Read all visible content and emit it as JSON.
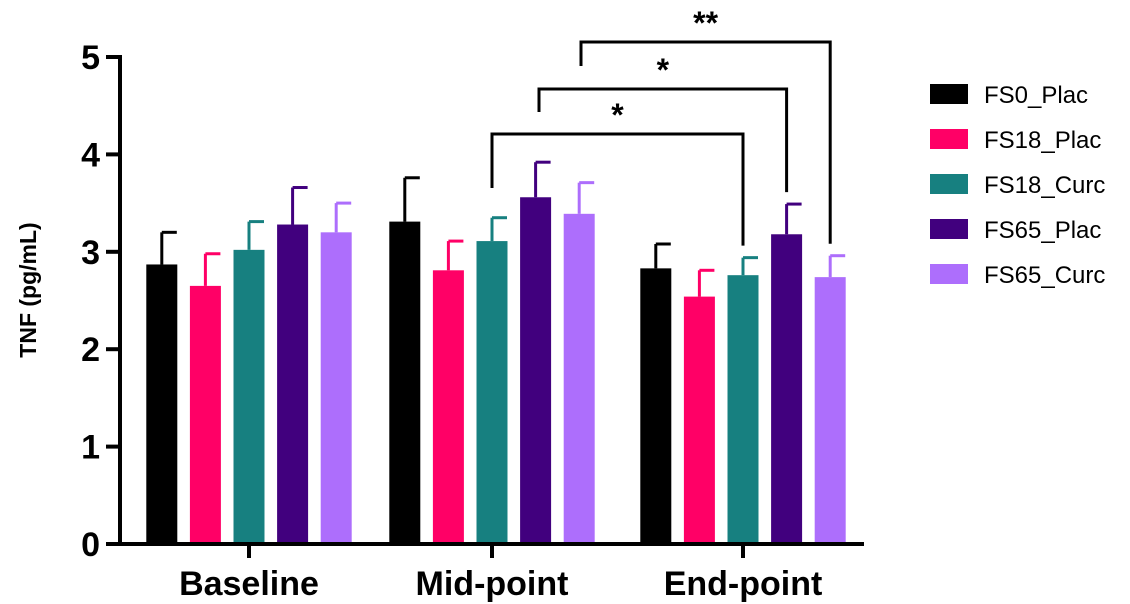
{
  "chart_data": {
    "type": "bar",
    "ylabel": "TNF (pg/mL)",
    "xlabel": "",
    "ylim": [
      0,
      5
    ],
    "yticks": [
      0,
      1,
      2,
      3,
      4,
      5
    ],
    "categories": [
      "Baseline",
      "Mid-point",
      "End-point"
    ],
    "legend_position": "right",
    "series": [
      {
        "name": "FS0_Plac",
        "color": "#000000",
        "values": [
          2.87,
          3.31,
          2.83
        ],
        "errors": [
          0.33,
          0.45,
          0.25
        ]
      },
      {
        "name": "FS18_Plac",
        "color": "#ff0066",
        "values": [
          2.65,
          2.81,
          2.54
        ],
        "errors": [
          0.33,
          0.3,
          0.27
        ]
      },
      {
        "name": "FS18_Curc",
        "color": "#178080",
        "values": [
          3.02,
          3.11,
          2.76
        ],
        "errors": [
          0.29,
          0.24,
          0.18
        ]
      },
      {
        "name": "FS65_Plac",
        "color": "#41007e",
        "values": [
          3.28,
          3.56,
          3.18
        ],
        "errors": [
          0.38,
          0.36,
          0.31
        ]
      },
      {
        "name": "FS65_Curc",
        "color": "#ad6efc",
        "values": [
          3.2,
          3.39,
          2.74
        ],
        "errors": [
          0.3,
          0.32,
          0.22
        ]
      }
    ],
    "significance": [
      {
        "from": "Mid-point",
        "to": "End-point / FS18_Curc",
        "label": "*"
      },
      {
        "from": "Mid-point",
        "to": "End-point / FS65_Plac",
        "label": "*"
      },
      {
        "from": "Mid-point",
        "to": "End-point / FS65_Curc",
        "label": "**"
      }
    ]
  }
}
